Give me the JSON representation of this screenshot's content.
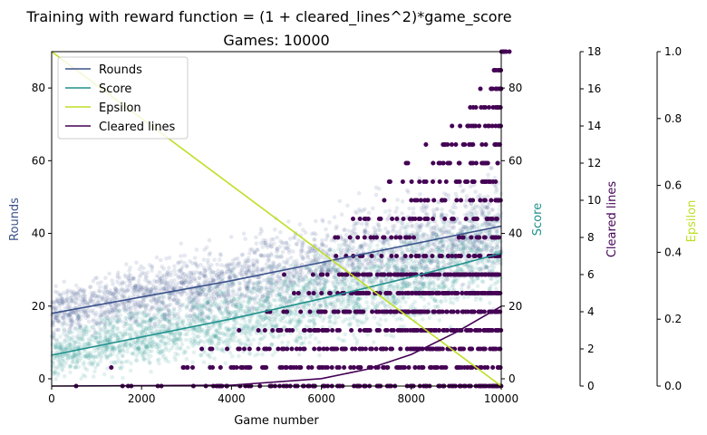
{
  "chart_data": {
    "type": "scatter",
    "title": "Training with reward function = (1 + cleared_lines^2)*game_score",
    "subtitle": "Games: 10000",
    "xlabel": "Game number",
    "xlim": [
      0,
      10000
    ],
    "xticks": [
      "0",
      "2000",
      "4000",
      "6000",
      "8000",
      "10000"
    ],
    "grid": false,
    "legend_position": "top-left",
    "axes": {
      "rounds": {
        "label": "Rounds",
        "ylim": [
          -2,
          90
        ],
        "ticks": [
          0,
          20,
          40,
          60,
          80
        ],
        "color": "#3b528b"
      },
      "score": {
        "label": "Score",
        "ylim": [
          -2,
          90
        ],
        "ticks": [
          0,
          20,
          40,
          60,
          80
        ],
        "color": "#21918c"
      },
      "cleared_lines": {
        "label": "Cleared lines",
        "ylim": [
          0,
          18
        ],
        "ticks": [
          0,
          2,
          4,
          6,
          8,
          10,
          12,
          14,
          16,
          18
        ],
        "color": "#440154"
      },
      "epsilon": {
        "label": "Epsilon",
        "ylim": [
          0,
          1.0
        ],
        "ticks": [
          "0.0",
          "0.2",
          "0.4",
          "0.6",
          "0.8",
          "1.0"
        ],
        "color": "#bddf26"
      }
    },
    "series": [
      {
        "name": "Rounds",
        "kind": "trend+scatter",
        "axis": "rounds",
        "color": "#3b528b",
        "trend": {
          "x": [
            0,
            2000,
            4000,
            6000,
            8000,
            10000
          ],
          "y": [
            18,
            22.5,
            27,
            32,
            37,
            42
          ]
        }
      },
      {
        "name": "Score",
        "kind": "trend+scatter",
        "axis": "score",
        "color": "#21918c",
        "trend": {
          "x": [
            0,
            2000,
            4000,
            6000,
            8000,
            10000
          ],
          "y": [
            6.5,
            11.5,
            16.5,
            22,
            28,
            34.5
          ]
        }
      },
      {
        "name": "Epsilon",
        "kind": "line",
        "axis": "epsilon",
        "color": "#bddf26",
        "x": [
          0,
          10000
        ],
        "y": [
          1.0,
          0.0
        ]
      },
      {
        "name": "Cleared lines",
        "kind": "trend+scatter",
        "axis": "cleared_lines",
        "color": "#440154",
        "trend": {
          "x": [
            0,
            4000,
            6000,
            7000,
            8000,
            9000,
            10000
          ],
          "y": [
            0,
            0.05,
            0.4,
            0.9,
            1.7,
            2.9,
            4.3
          ]
        },
        "levels": [
          0,
          1,
          2,
          3,
          4,
          5,
          6,
          7,
          8,
          9,
          10,
          11,
          12,
          13,
          14,
          15,
          16,
          17,
          18
        ]
      }
    ]
  }
}
